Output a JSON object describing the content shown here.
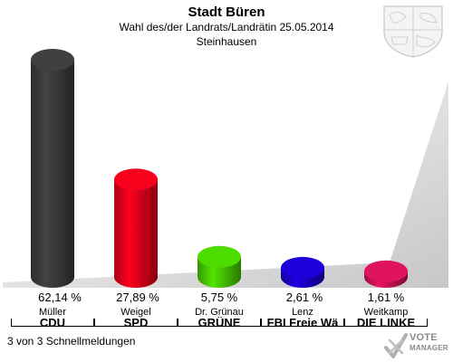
{
  "header": {
    "title": "Stadt Büren",
    "subtitle": "Wahl des/der Landrats/Landrätin 25.05.2014",
    "place": "Steinhausen"
  },
  "footer": {
    "status": "3 von 3 Schnellmeldungen"
  },
  "logo": {
    "line1": "VOTE",
    "line2": "MANAGER"
  },
  "chart_data": {
    "type": "bar",
    "categories": [
      "CDU",
      "SPD",
      "GRÜNE",
      "FBI Freie Wä",
      "DIE LINKE"
    ],
    "candidates": [
      "Müller",
      "Weigel",
      "Dr. Grünau",
      "Lenz",
      "Weitkamp"
    ],
    "values": [
      62.14,
      27.89,
      5.75,
      2.61,
      1.61
    ],
    "value_labels": [
      "62,14 %",
      "27,89 %",
      "5,75 %",
      "2,61 %",
      "1,61 %"
    ],
    "colors": [
      "#3a3a3a",
      "#e2001a",
      "#46c800",
      "#1a00c8",
      "#cc1155"
    ],
    "ylim": [
      0,
      62.14
    ]
  }
}
